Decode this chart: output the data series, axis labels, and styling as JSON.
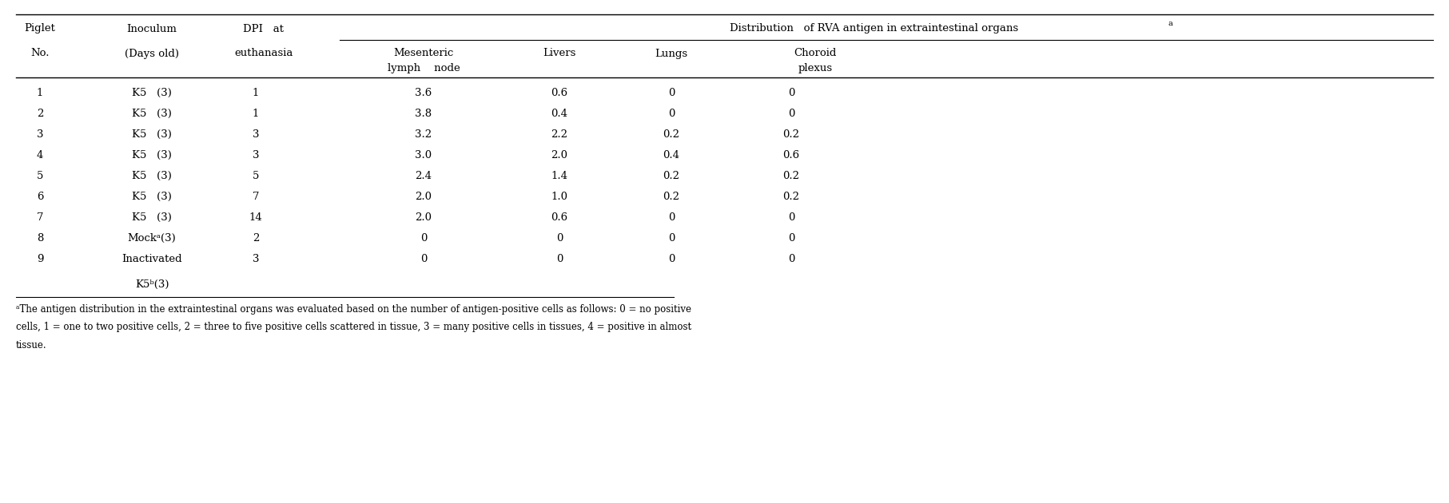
{
  "figsize": [
    18.13,
    6.3
  ],
  "dpi": 100,
  "bg_color": "#ffffff",
  "text_color": "#000000",
  "font_size": 9.5,
  "footnote_font_size": 8.5,
  "rows": [
    [
      "1",
      "K5   (3)",
      "1",
      "3.6",
      "0.6",
      "0",
      "0"
    ],
    [
      "2",
      "K5   (3)",
      "1",
      "3.8",
      "0.4",
      "0",
      "0"
    ],
    [
      "3",
      "K5   (3)",
      "3",
      "3.2",
      "2.2",
      "0.2",
      "0.2"
    ],
    [
      "4",
      "K5   (3)",
      "3",
      "3.0",
      "2.0",
      "0.4",
      "0.6"
    ],
    [
      "5",
      "K5   (3)",
      "5",
      "2.4",
      "1.4",
      "0.2",
      "0.2"
    ],
    [
      "6",
      "K5   (3)",
      "7",
      "2.0",
      "1.0",
      "0.2",
      "0.2"
    ],
    [
      "7",
      "K5   (3)",
      "14",
      "2.0",
      "0.6",
      "0",
      "0"
    ],
    [
      "8",
      "Mockᵃ(3)",
      "2",
      "0",
      "0",
      "0",
      "0"
    ],
    [
      "9",
      "Inactivated",
      "3",
      "0",
      "0",
      "0",
      "0"
    ],
    [
      "",
      "K5ᵇ(3)",
      "",
      "",
      "",
      "",
      ""
    ]
  ],
  "footnote_lines": [
    "ᵃThe antigen distribution in the extraintestinal organs was evaluated based on the number of antigen-positive cells as follows: 0 = no positive",
    "cells, 1 = one to two positive cells, 2 = three to five positive cells scattered in tissue, 3 = many positive cells in tissues, 4 = positive in almost",
    "tissue."
  ]
}
